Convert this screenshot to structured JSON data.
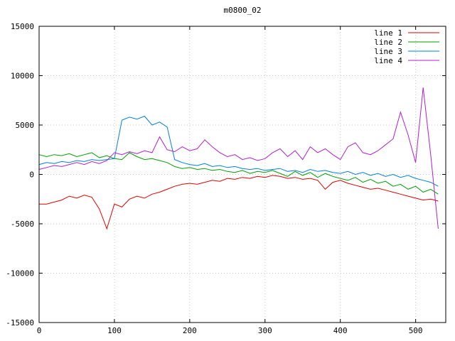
{
  "chart_data": {
    "type": "line",
    "title": "m0800_02",
    "xlabel": "",
    "ylabel": "",
    "xlim": [
      0,
      540
    ],
    "ylim": [
      -15000,
      15000
    ],
    "xticks": [
      0,
      100,
      200,
      300,
      400,
      500
    ],
    "yticks": [
      -15000,
      -10000,
      -5000,
      0,
      5000,
      10000,
      15000
    ],
    "grid": true,
    "grid_color": "#c8c8c8",
    "legend_position": "top-right",
    "x": [
      0,
      10,
      20,
      30,
      40,
      50,
      60,
      70,
      80,
      90,
      100,
      110,
      120,
      130,
      140,
      150,
      160,
      170,
      180,
      190,
      200,
      210,
      220,
      230,
      240,
      250,
      260,
      270,
      280,
      290,
      300,
      310,
      320,
      330,
      340,
      350,
      360,
      370,
      380,
      390,
      400,
      410,
      420,
      430,
      440,
      450,
      460,
      470,
      480,
      490,
      500,
      510,
      520,
      530
    ],
    "series": [
      {
        "name": "line 1",
        "color": "#e00000",
        "values": [
          -3000,
          -3000,
          -2800,
          -2600,
          -2200,
          -2400,
          -2100,
          -2300,
          -3500,
          -5500,
          -3000,
          -3300,
          -2500,
          -2200,
          -2400,
          -2000,
          -1800,
          -1500,
          -1200,
          -1000,
          -900,
          -1000,
          -800,
          -600,
          -700,
          -400,
          -500,
          -300,
          -400,
          -200,
          -300,
          -100,
          -200,
          -400,
          -300,
          -500,
          -400,
          -600,
          -1500,
          -800,
          -600,
          -900,
          -1100,
          -1300,
          -1500,
          -1400,
          -1600,
          -1800,
          -2000,
          -2200,
          -2400,
          -2600,
          -2500,
          -2700
        ]
      },
      {
        "name": "line 2",
        "color": "#00a000",
        "values": [
          2000,
          1800,
          2000,
          1900,
          2100,
          1800,
          2000,
          2200,
          1700,
          1900,
          1600,
          1500,
          2200,
          1800,
          1500,
          1600,
          1400,
          1200,
          800,
          600,
          700,
          500,
          600,
          400,
          500,
          300,
          200,
          400,
          100,
          300,
          200,
          400,
          100,
          -200,
          300,
          -100,
          200,
          -300,
          100,
          -200,
          -400,
          -600,
          -300,
          -800,
          -500,
          -900,
          -700,
          -1200,
          -1000,
          -1500,
          -1200,
          -1800,
          -1500,
          -2000
        ]
      },
      {
        "name": "line 3",
        "color": "#0080dd",
        "values": [
          1000,
          1200,
          1100,
          1300,
          1200,
          1400,
          1300,
          1500,
          1400,
          1500,
          1600,
          5500,
          5800,
          5600,
          5900,
          5000,
          5300,
          4800,
          1500,
          1200,
          1000,
          900,
          1100,
          800,
          900,
          700,
          800,
          600,
          500,
          600,
          400,
          500,
          600,
          300,
          400,
          200,
          500,
          300,
          400,
          200,
          100,
          300,
          0,
          200,
          -100,
          100,
          -200,
          0,
          -300,
          -100,
          -400,
          -600,
          -800,
          -1200
        ]
      },
      {
        "name": "line 4",
        "color": "#b020d0",
        "values": [
          500,
          700,
          900,
          800,
          1000,
          1200,
          1000,
          1300,
          1100,
          1400,
          2200,
          2000,
          2300,
          2100,
          2400,
          2200,
          3800,
          2500,
          2300,
          2800,
          2400,
          2600,
          3500,
          2800,
          2200,
          1800,
          2000,
          1500,
          1700,
          1400,
          1600,
          2200,
          2600,
          1800,
          2400,
          1500,
          2800,
          2200,
          2600,
          2000,
          1500,
          2800,
          3200,
          2200,
          2000,
          2400,
          3000,
          3600,
          6300,
          4000,
          1200,
          8800,
          2000,
          -5500
        ]
      }
    ]
  }
}
